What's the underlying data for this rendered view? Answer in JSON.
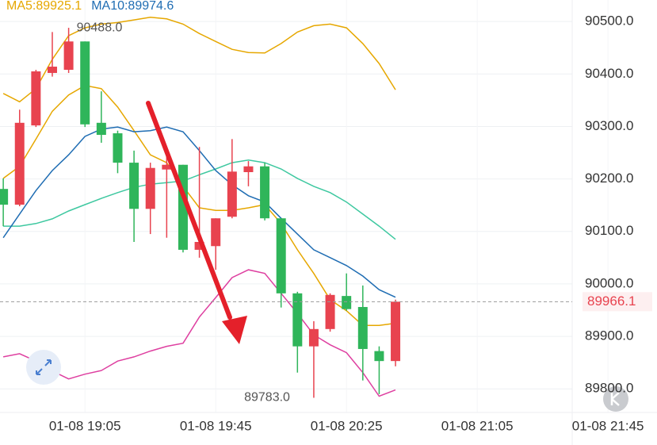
{
  "chart_data": {
    "type": "candlestick",
    "x": [
      "01-08 18:40",
      "01-08 18:45",
      "01-08 18:50",
      "01-08 18:55",
      "01-08 19:00",
      "01-08 19:05",
      "01-08 19:10",
      "01-08 19:15",
      "01-08 19:20",
      "01-08 19:25",
      "01-08 19:30",
      "01-08 19:35",
      "01-08 19:40",
      "01-08 19:45",
      "01-08 19:50",
      "01-08 19:55",
      "01-08 20:00",
      "01-08 20:05",
      "01-08 20:10",
      "01-08 20:15",
      "01-08 20:20",
      "01-08 20:25",
      "01-08 20:30",
      "01-08 20:35",
      "01-08 20:40"
    ],
    "open": [
      90181,
      90151,
      90302,
      90402,
      90408,
      90462,
      90307,
      90287,
      90231,
      90143,
      90218,
      90227,
      90065,
      90072,
      90128,
      90213,
      90224,
      90125,
      89982,
      89881,
      89914,
      89977,
      89956,
      89872,
      89853
    ],
    "high": [
      90201,
      90332,
      90408,
      90480,
      90488,
      90462,
      90367,
      90292,
      90254,
      90231,
      90246,
      90227,
      90261,
      90125,
      90276,
      90234,
      90231,
      90125,
      89985,
      89929,
      89982,
      90020,
      89997,
      89881,
      89970
    ],
    "low": [
      90110,
      90148,
      90299,
      90395,
      90402,
      90299,
      90269,
      90211,
      90080,
      90095,
      90088,
      90060,
      90050,
      90027,
      90125,
      90186,
      90121,
      89955,
      89831,
      89783,
      89909,
      89949,
      89816,
      89790,
      89843
    ],
    "close": [
      90151,
      90307,
      90405,
      90414,
      90462,
      90304,
      90284,
      90231,
      90143,
      90221,
      90227,
      90065,
      90080,
      90125,
      90214,
      90224,
      90125,
      89982,
      89881,
      89914,
      89979,
      89952,
      89876,
      89853,
      89966.1
    ],
    "up_color": "#e8434f",
    "down_color": "#2fb55a",
    "series": [
      {
        "name": "MA5:89925.1",
        "color": "#e6a700",
        "values": [
          90201,
          90224,
          90276,
          90329,
          90360,
          90378,
          90372,
          90337,
          90292,
          90246,
          90231,
          90186,
          90145,
          90140,
          90140,
          90145,
          90151,
          90115,
          90065,
          90020,
          89970,
          89949,
          89921,
          89921,
          89925.1
        ]
      },
      {
        "name": "MA10:89974.6",
        "color": "#1f6db3",
        "values": [
          90088,
          90133,
          90178,
          90216,
          90246,
          90281,
          90295,
          90299,
          90290,
          90292,
          90299,
          90290,
          90254,
          90216,
          90189,
          90168,
          90156,
          90125,
          90095,
          90065,
          90050,
          90035,
          90015,
          89989,
          89974.6
        ]
      }
    ],
    "bands": [
      {
        "color": "#e6a700",
        "values": [
          90363,
          90347,
          90372,
          90428,
          90473,
          90488,
          90495,
          90498,
          90503,
          90508,
          90505,
          90495,
          90477,
          90462,
          90447,
          90441,
          90440,
          90458,
          90480,
          90492,
          90495,
          90488,
          90458,
          90420,
          90370
        ]
      },
      {
        "color": "#3ec8a0",
        "values": [
          90110,
          90110,
          90115,
          90124,
          90139,
          90151,
          90163,
          90174,
          90184,
          90190,
          90193,
          90196,
          90208,
          90219,
          90231,
          90236,
          90231,
          90219,
          90201,
          90186,
          90174,
          90156,
          90133,
          90110,
          90085
        ]
      },
      {
        "color": "#de3fa0",
        "values": [
          89861,
          89867,
          89853,
          89834,
          89819,
          89828,
          89835,
          89853,
          89861,
          89872,
          89881,
          89887,
          89937,
          89974,
          90012,
          90027,
          90020,
          89982,
          89944,
          89903,
          89884,
          89869,
          89831,
          89786,
          89798
        ]
      }
    ],
    "xlim": [
      "01-08 18:39",
      "01-08 22:00"
    ],
    "xticks": [
      "01-08 19:05",
      "01-08 19:45",
      "01-08 20:25",
      "01-08 21:05",
      "01-08 21:45"
    ],
    "ylim": [
      89755,
      90541
    ],
    "yticks": [
      {
        "value": 89800,
        "label": "89800.0"
      },
      {
        "value": 89900,
        "label": "89900.0"
      },
      {
        "value": 90000,
        "label": "90000.0"
      },
      {
        "value": 90100,
        "label": "90100.0"
      },
      {
        "value": 90200,
        "label": "90200.0"
      },
      {
        "value": 90300,
        "label": "90300.0"
      },
      {
        "value": 90400,
        "label": "90400.0"
      },
      {
        "value": 90500,
        "label": "90500.0"
      }
    ],
    "grid": true,
    "high_label": {
      "x": "01-08 19:00",
      "value": 90488,
      "label": "90488.0"
    },
    "low_label": {
      "x": "01-08 20:15",
      "value": 89783,
      "label": "89783.0"
    },
    "last_price": {
      "value": 89966.1,
      "label": "89966.1"
    }
  }
}
